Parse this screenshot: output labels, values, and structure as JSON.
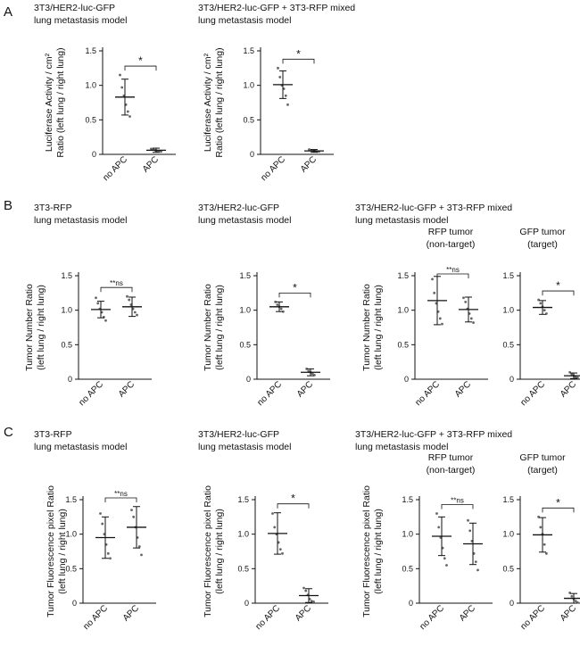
{
  "panel_letters": [
    "A",
    "B",
    "C"
  ],
  "chart_data": [
    {
      "type": "scatter",
      "panel": "A",
      "title": [
        "3T3/HER2-luc-GFP",
        "lung metastasis model"
      ],
      "ylabel": [
        "Luciferase Activity / cm²",
        "Ratio (left lung / right lung)"
      ],
      "ylim": [
        0,
        1.5
      ],
      "yticks": [
        0,
        0.5,
        1.0,
        1.5
      ],
      "ytick_labels": [
        "0",
        "0.5",
        "1.0",
        "1.5"
      ],
      "categories": [
        "no APC",
        "APC"
      ],
      "means": [
        0.83,
        0.06
      ],
      "sd": [
        0.26,
        0.03
      ],
      "points": [
        [
          1.15,
          0.97,
          0.85,
          0.72,
          0.62,
          0.55
        ],
        [
          0.08,
          0.07,
          0.06,
          0.05,
          0.05,
          0.04
        ]
      ],
      "significance": "*"
    },
    {
      "type": "scatter",
      "panel": "A",
      "title": [
        "3T3/HER2-luc-GFP + 3T3-RFP mixed",
        "lung metastasis model"
      ],
      "ylabel": [
        "Luciferase Activity / cm²",
        "Ratio (left lung / right lung)"
      ],
      "ylim": [
        0,
        1.5
      ],
      "yticks": [
        0,
        0.5,
        1.0,
        1.5
      ],
      "ytick_labels": [
        "0",
        "0.5",
        "1.0",
        "1.5"
      ],
      "categories": [
        "no APC",
        "APC"
      ],
      "means": [
        1.01,
        0.05
      ],
      "sd": [
        0.2,
        0.02
      ],
      "points": [
        [
          1.25,
          1.12,
          1.0,
          0.95,
          0.85,
          0.72
        ],
        [
          0.07,
          0.06,
          0.05,
          0.05,
          0.04,
          0.04
        ]
      ],
      "significance": "*"
    },
    {
      "type": "scatter",
      "panel": "B",
      "title": [
        "3T3-RFP",
        "lung metastasis model"
      ],
      "ylabel": [
        "Tumor Number Ratio",
        "(left lung / right lung)"
      ],
      "ylim": [
        0,
        1.5
      ],
      "yticks": [
        0,
        0.5,
        1.0,
        1.5
      ],
      "ytick_labels": [
        "0",
        "0.5",
        "1.0",
        "1.5"
      ],
      "categories": [
        "no APC",
        "APC"
      ],
      "means": [
        1.01,
        1.05
      ],
      "sd": [
        0.12,
        0.14
      ],
      "points": [
        [
          1.18,
          1.1,
          1.02,
          0.97,
          0.9,
          0.85
        ],
        [
          1.2,
          1.15,
          1.08,
          1.02,
          0.97,
          0.93
        ]
      ],
      "significance": "**ns"
    },
    {
      "type": "scatter",
      "panel": "B",
      "title": [
        "3T3/HER2-luc-GFP",
        "lung metastasis model"
      ],
      "ylabel": [
        "Tumor Number Ratio",
        "(left lung / right lung)"
      ],
      "ylim": [
        0,
        1.5
      ],
      "yticks": [
        0,
        0.5,
        1.0,
        1.5
      ],
      "ytick_labels": [
        "0",
        "0.5",
        "1.0",
        "1.5"
      ],
      "categories": [
        "no APC",
        "APC"
      ],
      "means": [
        1.05,
        0.1
      ],
      "sd": [
        0.07,
        0.05
      ],
      "points": [
        [
          1.12,
          1.08,
          1.05,
          1.02,
          0.98
        ],
        [
          0.15,
          0.12,
          0.1,
          0.08,
          0.06
        ]
      ],
      "significance": "*"
    },
    {
      "type": "scatter",
      "panel": "B",
      "title": [
        "3T3/HER2-luc-GFP + 3T3-RFP mixed",
        "lung metastasis model"
      ],
      "subtitle": [
        "RFP tumor",
        "(non-target)"
      ],
      "ylabel": [
        "Tumor Number Ratio",
        "(left lung / right lung)"
      ],
      "ylim": [
        0,
        1.5
      ],
      "yticks": [
        0,
        0.5,
        1.0,
        1.5
      ],
      "ytick_labels": [
        "0",
        "0.5",
        "1.0",
        "1.5"
      ],
      "categories": [
        "no APC",
        "APC"
      ],
      "means": [
        1.14,
        1.01
      ],
      "sd": [
        0.35,
        0.18
      ],
      "points": [
        [
          1.45,
          1.25,
          1.1,
          0.98,
          0.88,
          0.8
        ],
        [
          1.18,
          1.12,
          1.02,
          0.95,
          0.88,
          0.82
        ]
      ],
      "significance": "**ns"
    },
    {
      "type": "scatter",
      "panel": "B",
      "subtitle": [
        "GFP tumor",
        "(target)"
      ],
      "ylabel": [],
      "ylim": [
        0,
        1.5
      ],
      "yticks": [
        0,
        0.5,
        1.0,
        1.5
      ],
      "ytick_labels": [
        "0",
        "0.5",
        "1.0",
        "1.5"
      ],
      "categories": [
        "no APC",
        "APC"
      ],
      "means": [
        1.04,
        0.05
      ],
      "sd": [
        0.1,
        0.04
      ],
      "points": [
        [
          1.15,
          1.1,
          1.05,
          1.0,
          0.95
        ],
        [
          0.1,
          0.07,
          0.05,
          0.03,
          0.02
        ]
      ],
      "significance": "*"
    },
    {
      "type": "scatter",
      "panel": "C",
      "title": [
        "3T3-RFP",
        "lung metastasis model"
      ],
      "ylabel": [
        "Tumor Fluorescence pixel Ratio",
        "(left lung / right lung)"
      ],
      "ylim": [
        0,
        1.5
      ],
      "yticks": [
        0,
        0.5,
        1.0,
        1.5
      ],
      "ytick_labels": [
        "0",
        "0.5",
        "1.0",
        "1.5"
      ],
      "categories": [
        "no APC",
        "APC"
      ],
      "means": [
        0.95,
        1.1
      ],
      "sd": [
        0.3,
        0.3
      ],
      "points": [
        [
          1.3,
          1.15,
          1.0,
          0.85,
          0.72,
          0.65
        ],
        [
          1.35,
          1.25,
          1.1,
          0.95,
          0.82,
          0.7
        ]
      ],
      "significance": "**ns"
    },
    {
      "type": "scatter",
      "panel": "C",
      "title": [
        "3T3/HER2-luc-GFP",
        "lung metastasis model"
      ],
      "ylabel": [
        "Tumor Fluorescence pixel Ratio",
        "(left lung / right lung)"
      ],
      "ylim": [
        0,
        1.5
      ],
      "yticks": [
        0,
        0.5,
        1.0,
        1.5
      ],
      "ytick_labels": [
        "0",
        "0.5",
        "1.0",
        "1.5"
      ],
      "categories": [
        "no APC",
        "APC"
      ],
      "means": [
        1.01,
        0.11
      ],
      "sd": [
        0.3,
        0.1
      ],
      "points": [
        [
          1.3,
          1.1,
          1.0,
          0.88,
          0.78,
          0.72
        ],
        [
          0.22,
          0.18,
          0.12,
          0.06,
          0.03,
          0.02
        ]
      ],
      "significance": "*"
    },
    {
      "type": "scatter",
      "panel": "C",
      "title": [
        "3T3/HER2-luc-GFP + 3T3-RFP mixed",
        "lung metastasis model"
      ],
      "subtitle": [
        "RFP tumor",
        "(non-target)"
      ],
      "ylabel": [
        "Tumor Fluorescence pixel Ratio",
        "(left lung / right lung)"
      ],
      "ylim": [
        0,
        1.5
      ],
      "yticks": [
        0,
        0.5,
        1.0,
        1.5
      ],
      "ytick_labels": [
        "0",
        "0.5",
        "1.0",
        "1.5"
      ],
      "categories": [
        "no APC",
        "APC"
      ],
      "means": [
        0.97,
        0.86
      ],
      "sd": [
        0.28,
        0.3
      ],
      "points": [
        [
          1.3,
          1.1,
          0.95,
          0.8,
          0.65,
          0.55
        ],
        [
          1.2,
          1.05,
          0.9,
          0.72,
          0.6,
          0.48
        ]
      ],
      "significance": "**ns"
    },
    {
      "type": "scatter",
      "panel": "C",
      "subtitle": [
        "GFP tumor",
        "(target)"
      ],
      "ylabel": [],
      "ylim": [
        0,
        1.5
      ],
      "yticks": [
        0,
        0.5,
        1.0,
        1.5
      ],
      "ytick_labels": [
        "0",
        "0.5",
        "1.0",
        "1.5"
      ],
      "categories": [
        "no APC",
        "APC"
      ],
      "means": [
        0.99,
        0.07
      ],
      "sd": [
        0.25,
        0.07
      ],
      "points": [
        [
          1.25,
          1.1,
          1.0,
          0.85,
          0.72
        ],
        [
          0.15,
          0.1,
          0.06,
          0.03,
          0.01
        ]
      ],
      "significance": "*"
    }
  ]
}
